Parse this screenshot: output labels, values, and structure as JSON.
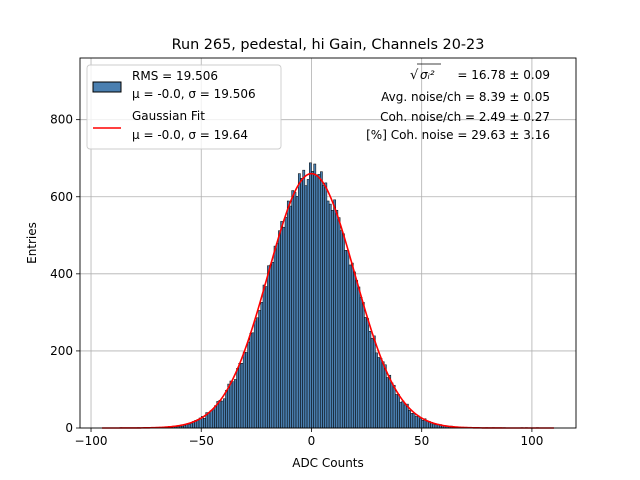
{
  "chart_data": {
    "type": "bar",
    "title": "Run 265, pedestal, hi Gain, Channels 20-23",
    "xlabel": "ADC Counts",
    "ylabel": "Entries",
    "xlim": [
      -105,
      120
    ],
    "ylim": [
      0,
      960
    ],
    "xticks": [
      -100,
      -50,
      0,
      50,
      100
    ],
    "xtick_labels": [
      "−100",
      "−50",
      "0",
      "50",
      "100"
    ],
    "yticks": [
      0,
      200,
      400,
      600,
      800
    ],
    "ytick_labels": [
      "0",
      "200",
      "400",
      "600",
      "800"
    ],
    "grid": true,
    "legend_position": "top-left",
    "histogram": {
      "name": "RMS = 19.506",
      "sublabel": "μ = -0.0, σ = 19.506",
      "color": "#4a7fb0",
      "edgecolor": "#000000",
      "bin_width": 1,
      "range": [
        -95,
        110
      ],
      "peak_entries": 675,
      "mean": 0.0,
      "sigma": 19.506
    },
    "series": [
      {
        "name": "Gaussian Fit",
        "sublabel": "μ = -0.0, σ = 19.64",
        "type": "line",
        "color": "#ff0000",
        "mu": 0.0,
        "sigma": 19.64,
        "amplitude": 660,
        "x_range": [
          -95,
          110
        ]
      }
    ],
    "annotations": [
      {
        "label": "σᵢ²",
        "value": " = 16.78 ± 0.09",
        "prefix": "√"
      },
      {
        "text": "Avg. noise/ch = 8.39 ± 0.05"
      },
      {
        "text": "Coh. noise/ch = 2.49 ± 0.27"
      },
      {
        "text": "[%] Coh. noise = 29.63 ± 3.16"
      }
    ]
  }
}
